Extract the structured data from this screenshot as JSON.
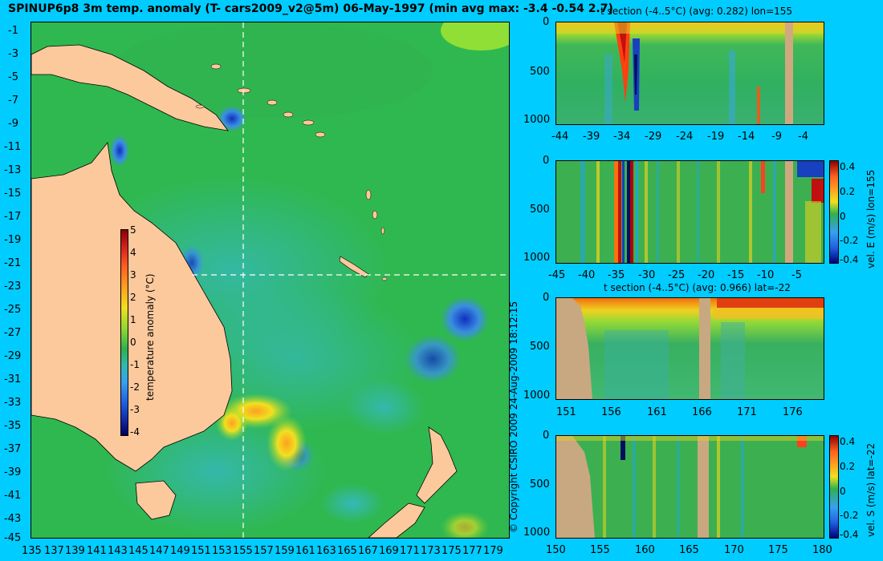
{
  "main_title": "SPINUP6p8 3m temp. anomaly (T- cars2009_v2@5m) 06-May-1997 (min avg max: -3.4 -0.54 2.7)",
  "map": {
    "lat_labels": [
      "-1",
      "-3",
      "-5",
      "-7",
      "-9",
      "-11",
      "-13",
      "-15",
      "-17",
      "-19",
      "-21",
      "-23",
      "-25",
      "-27",
      "-29",
      "-31",
      "-33",
      "-35",
      "-37",
      "-39",
      "-41",
      "-43",
      "-45"
    ],
    "lon_labels": [
      "135",
      "137",
      "139",
      "141",
      "143",
      "145",
      "147",
      "149",
      "151",
      "153",
      "155",
      "157",
      "159",
      "161",
      "163",
      "165",
      "167",
      "169",
      "171",
      "173",
      "175",
      "177",
      "179"
    ],
    "colorbar_ticks": [
      "5",
      "4",
      "3",
      "2",
      "1",
      "0",
      "-1",
      "-2",
      "-3",
      "-4"
    ],
    "colorbar_label": "temperature anomaly (°C)",
    "copyright": "© Copyright CSIRO 2009   24-Aug-2009 18:12:15"
  },
  "panel1": {
    "title": "t section (-4..5°C) (avg: 0.282) lon=155",
    "y_ticks": [
      "0",
      "500",
      "1000"
    ],
    "x_ticks": [
      "-44",
      "-39",
      "-34",
      "-29",
      "-24",
      "-19",
      "-14",
      "-9",
      "-4"
    ]
  },
  "panel2": {
    "y_ticks": [
      "0",
      "500",
      "1000"
    ],
    "x_ticks": [
      "-45",
      "-40",
      "-35",
      "-30",
      "-25",
      "-20",
      "-15",
      "-10",
      "-5"
    ],
    "cb_ticks": [
      "0.4",
      "0.2",
      "0",
      "-0.2",
      "-0.4"
    ],
    "cb_label": "vel. E (m/s) lon=155"
  },
  "panel3": {
    "title": "t section (-4..5°C) (avg: 0.966) lat=-22",
    "y_ticks": [
      "0",
      "500",
      "1000"
    ],
    "x_ticks": [
      "151",
      "156",
      "161",
      "166",
      "171",
      "176"
    ]
  },
  "panel4": {
    "y_ticks": [
      "0",
      "500",
      "1000"
    ],
    "x_ticks": [
      "150",
      "155",
      "160",
      "165",
      "170",
      "175",
      "180"
    ],
    "cb_ticks": [
      "0.4",
      "0.2",
      "0",
      "-0.2",
      "-0.4"
    ],
    "cb_label": "vel. S (m/s) lat=-22"
  }
}
